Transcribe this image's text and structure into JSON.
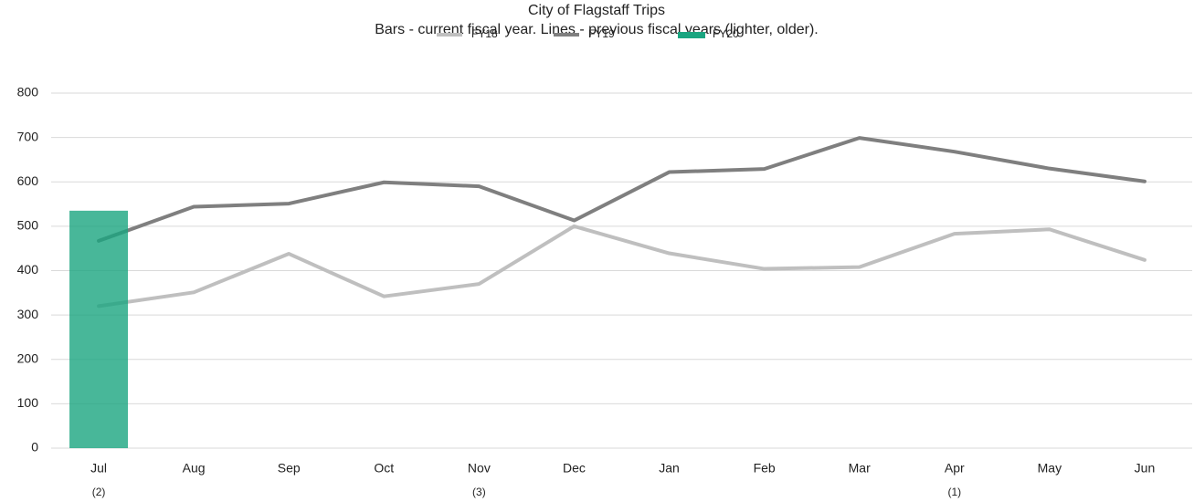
{
  "chart_data": {
    "type": "bar",
    "title": "City of Flagstaff Trips",
    "subtitle": "Bars - current fiscal year. Lines - previous fiscal years (lighter, older).",
    "categories": [
      "Jul",
      "Aug",
      "Sep",
      "Oct",
      "Nov",
      "Dec",
      "Jan",
      "Feb",
      "Mar",
      "Apr",
      "May",
      "Jun"
    ],
    "category_notes": [
      "(2)",
      null,
      null,
      null,
      "(3)",
      null,
      null,
      null,
      null,
      "(1)",
      null,
      null
    ],
    "series": [
      {
        "name": "FY18",
        "type": "line",
        "color": "#bfbfbf",
        "values": [
          320,
          351,
          438,
          342,
          370,
          500,
          439,
          404,
          408,
          483,
          493,
          424
        ]
      },
      {
        "name": "FY19",
        "type": "line",
        "color": "#7f7f7f",
        "values": [
          467,
          544,
          551,
          599,
          590,
          513,
          622,
          629,
          699,
          668,
          630,
          601
        ]
      },
      {
        "name": "FY20",
        "type": "bar",
        "color": "#1aa580",
        "values": [
          535,
          null,
          null,
          null,
          null,
          null,
          null,
          null,
          null,
          null,
          null,
          null
        ]
      }
    ],
    "ylim": [
      0,
      800
    ],
    "yticks": [
      0,
      100,
      200,
      300,
      400,
      500,
      600,
      700,
      800
    ],
    "grid": true,
    "legend": "top"
  }
}
